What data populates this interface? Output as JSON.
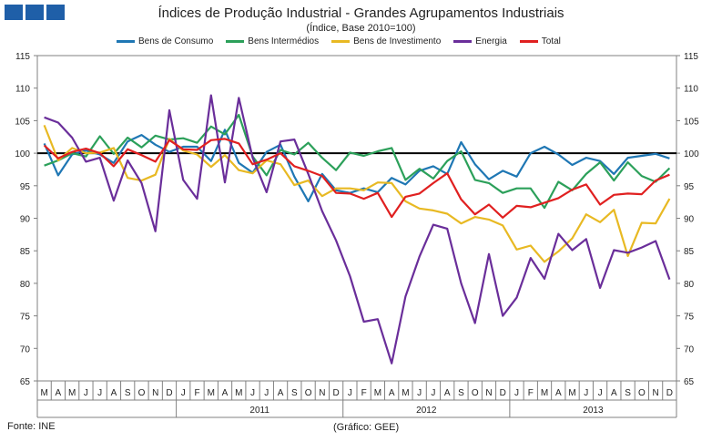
{
  "header": {
    "title": "Índices de Produção Industrial - Grandes Agrupamentos  Industriais",
    "subtitle": "(Índice, Base 2010=100)"
  },
  "footer": {
    "source": "Fonte: INE",
    "credit": "(Gráfico: GEE)"
  },
  "colors": {
    "logo": "#1f5fa8",
    "reference_line": "#000000"
  },
  "chart_data": {
    "type": "line",
    "title": "Índices de Produção Industrial - Grandes Agrupamentos  Industriais",
    "subtitle": "(Índice, Base 2010=100)",
    "x": [
      "M",
      "A",
      "M",
      "J",
      "J",
      "A",
      "S",
      "O",
      "N",
      "D",
      "J",
      "F",
      "M",
      "A",
      "M",
      "J",
      "J",
      "A",
      "S",
      "O",
      "N",
      "D",
      "J",
      "F",
      "M",
      "A",
      "M",
      "J",
      "J",
      "A",
      "S",
      "O",
      "N",
      "D",
      "J",
      "F",
      "M",
      "A",
      "M",
      "J",
      "J",
      "A",
      "S",
      "O",
      "N",
      "D"
    ],
    "year_labels": [
      {
        "label": "2011",
        "start": 10,
        "end": 21
      },
      {
        "label": "2012",
        "start": 22,
        "end": 33
      },
      {
        "label": "2013",
        "start": 34,
        "end": 45
      }
    ],
    "ylim": [
      65,
      115
    ],
    "yticks": [
      65,
      70,
      75,
      80,
      85,
      90,
      95,
      100,
      105,
      110,
      115
    ],
    "reference_line": 100,
    "grid": false,
    "legend_position": "top",
    "series": [
      {
        "name": "Bens de Consumo",
        "color": "#1f77b4",
        "values": [
          101.5,
          96.6,
          99.8,
          100.4,
          99.8,
          98.5,
          101.8,
          102.8,
          101.3,
          100.2,
          101.0,
          101.0,
          98.8,
          103.6,
          98.5,
          97.0,
          100.2,
          101.3,
          96.4,
          92.6,
          96.8,
          94.3,
          93.9,
          94.6,
          94.0,
          96.2,
          95.2,
          97.3,
          98.0,
          96.8,
          101.7,
          98.3,
          96.0,
          97.3,
          96.4,
          100.0,
          101.0,
          99.8,
          98.2,
          99.3,
          98.8,
          96.8,
          99.3,
          99.6,
          99.9,
          99.2
        ]
      },
      {
        "name": "Bens Intermédios",
        "color": "#2ca05a",
        "values": [
          98.1,
          98.9,
          100.0,
          99.5,
          102.6,
          99.9,
          102.4,
          100.9,
          102.7,
          102.1,
          102.3,
          101.6,
          104.1,
          102.9,
          105.9,
          99.5,
          96.6,
          100.5,
          99.8,
          101.6,
          99.3,
          97.4,
          100.1,
          99.6,
          100.3,
          100.8,
          95.9,
          97.6,
          96.1,
          98.8,
          100.3,
          95.9,
          95.4,
          93.9,
          94.6,
          94.6,
          91.6,
          95.6,
          94.3,
          96.8,
          98.6,
          95.8,
          98.6,
          96.5,
          95.6,
          97.7
        ]
      },
      {
        "name": "Bens de Investimento",
        "color": "#e8b923",
        "values": [
          104.3,
          98.9,
          100.8,
          100.0,
          100.1,
          100.8,
          96.2,
          95.8,
          96.7,
          102.2,
          100.4,
          99.8,
          97.9,
          99.7,
          97.4,
          96.9,
          98.9,
          98.3,
          95.1,
          95.8,
          93.4,
          94.6,
          94.6,
          94.3,
          95.5,
          95.4,
          92.6,
          91.5,
          91.2,
          90.7,
          89.2,
          90.2,
          89.8,
          88.9,
          85.2,
          85.8,
          83.3,
          84.9,
          86.9,
          90.6,
          89.4,
          91.3,
          84.2,
          89.3,
          89.2,
          93.0
        ]
      },
      {
        "name": "Energia",
        "color": "#6a2e9a",
        "values": [
          105.5,
          104.7,
          102.4,
          98.7,
          99.3,
          92.7,
          98.9,
          95.4,
          88.0,
          106.6,
          95.9,
          93.0,
          108.9,
          95.5,
          108.5,
          99.3,
          94.0,
          101.8,
          102.1,
          96.8,
          91.1,
          86.6,
          81.1,
          74.1,
          74.5,
          67.7,
          78.0,
          84.1,
          89.0,
          88.4,
          80.0,
          73.9,
          84.5,
          75.0,
          77.8,
          83.9,
          80.7,
          87.6,
          85.1,
          86.8,
          79.3,
          85.1,
          84.7,
          85.5,
          86.5,
          80.6
        ]
      },
      {
        "name": "Total",
        "color": "#e02020",
        "values": [
          101.2,
          99.2,
          100.2,
          100.7,
          100.0,
          98.0,
          100.6,
          99.7,
          98.7,
          102.0,
          100.6,
          100.5,
          102.0,
          102.2,
          101.5,
          98.3,
          99.0,
          100.0,
          98.0,
          97.3,
          96.5,
          93.9,
          93.8,
          93.0,
          93.9,
          90.2,
          93.3,
          93.8,
          95.4,
          96.9,
          92.9,
          90.6,
          92.1,
          90.1,
          91.9,
          91.7,
          92.4,
          93.1,
          94.4,
          95.2,
          92.1,
          93.6,
          93.8,
          93.7,
          95.8,
          96.7
        ]
      }
    ]
  }
}
